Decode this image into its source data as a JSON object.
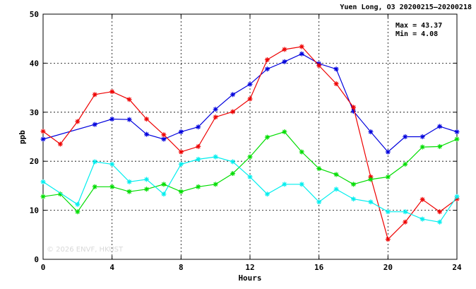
{
  "chart_data": {
    "type": "line",
    "title": "Yuen Long, O3 20200215—20200218",
    "xlabel": "Hours",
    "ylabel": "ppb",
    "xlim": [
      0,
      24
    ],
    "ylim": [
      0,
      50
    ],
    "x_ticks": [
      "0",
      "4",
      "8",
      "12",
      "16",
      "20",
      "24"
    ],
    "y_ticks": [
      "0",
      "10",
      "20",
      "30",
      "40",
      "50"
    ],
    "grid": true,
    "stats": {
      "max": "Max = 43.37",
      "min": "Min =  4.08"
    },
    "watermark": "© 2026  ENVF, HKUST",
    "series": [
      {
        "color": "#0000dd",
        "marker": "asterisk",
        "x": [
          0,
          3,
          4,
          5,
          6,
          7,
          8,
          9,
          10,
          11,
          12,
          13,
          14,
          15,
          16,
          17,
          18,
          19,
          20,
          21,
          22,
          23,
          24
        ],
        "values": [
          24.5,
          27.5,
          28.6,
          28.5,
          25.5,
          24.5,
          26.0,
          27.0,
          30.6,
          33.6,
          35.7,
          38.8,
          40.3,
          41.9,
          39.9,
          38.8,
          30.2,
          26.0,
          21.9,
          25.0,
          25.0,
          27.1,
          26.0
        ]
      },
      {
        "color": "#ee0000",
        "marker": "asterisk",
        "x": [
          0,
          1,
          2,
          3,
          4,
          5,
          6,
          7,
          8,
          9,
          10,
          11,
          12,
          13,
          14,
          15,
          16,
          17,
          18,
          19,
          20,
          21,
          22,
          23,
          24
        ],
        "values": [
          26.1,
          23.5,
          28.1,
          33.6,
          34.2,
          32.6,
          28.6,
          25.4,
          21.9,
          23.0,
          29.0,
          30.1,
          32.7,
          40.7,
          42.8,
          43.37,
          39.5,
          35.8,
          31.0,
          16.8,
          4.08,
          7.6,
          12.2,
          9.7,
          12.3
        ]
      },
      {
        "color": "#00dd00",
        "marker": "asterisk",
        "x": [
          0,
          1,
          2,
          3,
          4,
          5,
          6,
          7,
          8,
          9,
          10,
          11,
          12,
          13,
          14,
          15,
          16,
          17,
          18,
          19,
          20,
          21,
          22,
          23,
          24
        ],
        "values": [
          12.8,
          13.3,
          9.7,
          14.8,
          14.8,
          13.8,
          14.3,
          15.3,
          13.8,
          14.8,
          15.3,
          17.5,
          20.9,
          24.9,
          26.0,
          21.9,
          18.5,
          17.3,
          15.3,
          16.3,
          16.8,
          19.4,
          22.9,
          23.0,
          24.5
        ]
      },
      {
        "color": "#00eeee",
        "marker": "asterisk",
        "x": [
          0,
          2,
          3,
          4,
          5,
          6,
          7,
          8,
          9,
          10,
          11,
          12,
          13,
          14,
          15,
          16,
          17,
          18,
          19,
          20,
          21,
          22,
          23,
          24
        ],
        "values": [
          15.8,
          11.2,
          19.9,
          19.4,
          15.8,
          16.3,
          13.3,
          19.4,
          20.4,
          20.9,
          19.9,
          16.8,
          13.3,
          15.3,
          15.3,
          11.7,
          14.3,
          12.3,
          11.7,
          9.7,
          9.7,
          8.2,
          7.6,
          12.8
        ]
      }
    ]
  }
}
